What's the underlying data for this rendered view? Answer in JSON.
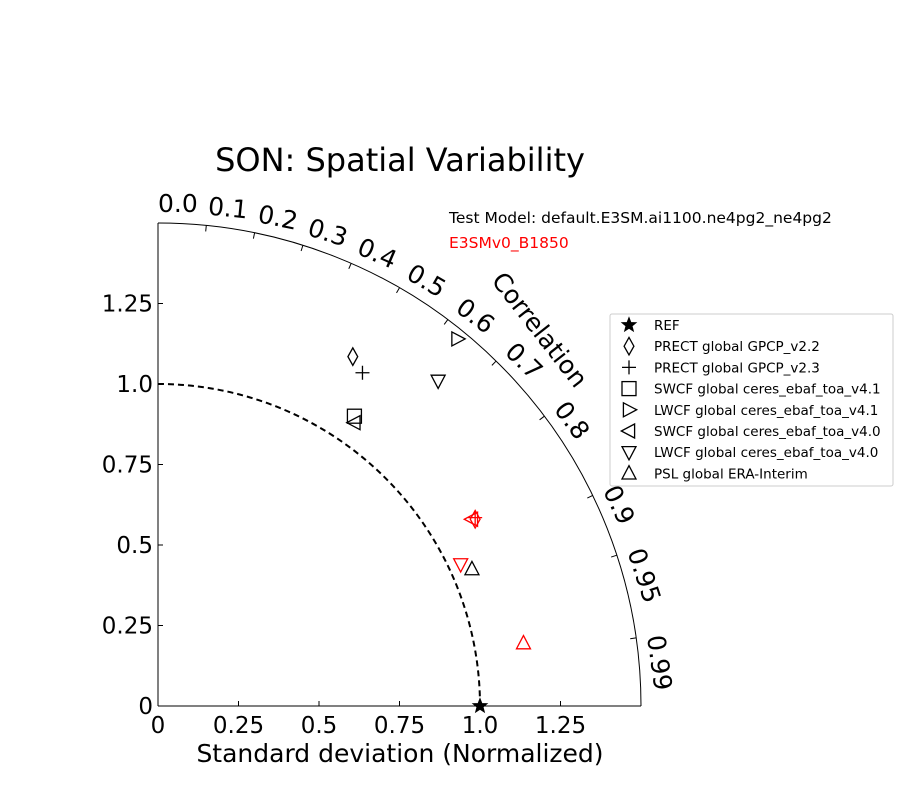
{
  "chart_data": {
    "type": "scatter",
    "diagram": "taylor",
    "title": "SON: Spatial Variability",
    "xlabel": "Standard deviation (Normalized)",
    "corr_label": "Correlation",
    "std_range": [
      0,
      1.5
    ],
    "std_ticks": [
      0,
      0.25,
      0.5,
      0.75,
      1.0,
      1.25
    ],
    "std_tick_labels": [
      "0",
      "0.25",
      "0.5",
      "0.75",
      "1.0",
      "1.25"
    ],
    "y_tick_labels": [
      "0",
      "0.25",
      "0.5",
      "0.75",
      "1.0",
      "1.25"
    ],
    "corr_ticks": [
      0.0,
      0.1,
      0.2,
      0.3,
      0.4,
      0.5,
      0.6,
      0.7,
      0.8,
      0.9,
      0.95,
      0.99
    ],
    "corr_tick_labels": [
      "0.0",
      "0.1",
      "0.2",
      "0.3",
      "0.4",
      "0.5",
      "0.6",
      "0.7",
      "0.8",
      "0.9",
      "0.95",
      "0.99"
    ],
    "reference_std": 1.0,
    "test_model_label": "Test Model: default.E3SM.ai1100.ne4pg2_ne4pg2",
    "ref_model_label": "E3SMv0_B1850",
    "colors": {
      "test": "#000000",
      "ref_model": "#ff0000"
    },
    "legend": {
      "position": "right",
      "entries": [
        {
          "marker": "star",
          "label": "REF"
        },
        {
          "marker": "diamond",
          "label": "PRECT global GPCP_v2.2"
        },
        {
          "marker": "plus",
          "label": "PRECT global GPCP_v2.3"
        },
        {
          "marker": "square",
          "label": "SWCF global ceres_ebaf_toa_v4.1"
        },
        {
          "marker": "triangle-right",
          "label": "LWCF global ceres_ebaf_toa_v4.1"
        },
        {
          "marker": "triangle-left",
          "label": "SWCF global ceres_ebaf_toa_v4.0"
        },
        {
          "marker": "triangle-down",
          "label": "LWCF global ceres_ebaf_toa_v4.0"
        },
        {
          "marker": "triangle-up",
          "label": "PSL global ERA-Interim"
        }
      ]
    },
    "points": [
      {
        "series": "REF",
        "marker": "star",
        "model": "reference",
        "std_x": 1.0,
        "std_y": 0.0
      },
      {
        "series": "PRECT global GPCP_v2.2",
        "marker": "diamond",
        "model": "test",
        "std_x": 0.605,
        "std_y": 1.085
      },
      {
        "series": "PRECT global GPCP_v2.3",
        "marker": "plus",
        "model": "test",
        "std_x": 0.635,
        "std_y": 1.035
      },
      {
        "series": "SWCF global ceres_ebaf_toa_v4.1",
        "marker": "square",
        "model": "test",
        "std_x": 0.61,
        "std_y": 0.9
      },
      {
        "series": "LWCF global ceres_ebaf_toa_v4.1",
        "marker": "triangle-right",
        "model": "test",
        "std_x": 0.93,
        "std_y": 1.14
      },
      {
        "series": "SWCF global ceres_ebaf_toa_v4.0",
        "marker": "triangle-left",
        "model": "test",
        "std_x": 0.61,
        "std_y": 0.88
      },
      {
        "series": "LWCF global ceres_ebaf_toa_v4.0",
        "marker": "triangle-down",
        "model": "test",
        "std_x": 0.87,
        "std_y": 1.01
      },
      {
        "series": "PSL global ERA-Interim",
        "marker": "triangle-up",
        "model": "test",
        "std_x": 0.975,
        "std_y": 0.425
      },
      {
        "series": "PRECT global GPCP_v2.2",
        "marker": "diamond",
        "model": "ref_model",
        "std_x": 0.985,
        "std_y": 0.58
      },
      {
        "series": "PRECT global GPCP_v2.3",
        "marker": "plus",
        "model": "ref_model",
        "std_x": 0.985,
        "std_y": 0.585
      },
      {
        "series": "SWCF global ceres_ebaf_toa_v4.0",
        "marker": "triangle-left",
        "model": "ref_model",
        "std_x": 0.975,
        "std_y": 0.58
      },
      {
        "series": "LWCF global ceres_ebaf_toa_v4.0",
        "marker": "triangle-down",
        "model": "ref_model",
        "std_x": 0.94,
        "std_y": 0.44
      },
      {
        "series": "PSL global ERA-Interim",
        "marker": "triangle-up",
        "model": "ref_model",
        "std_x": 1.135,
        "std_y": 0.195
      }
    ]
  }
}
